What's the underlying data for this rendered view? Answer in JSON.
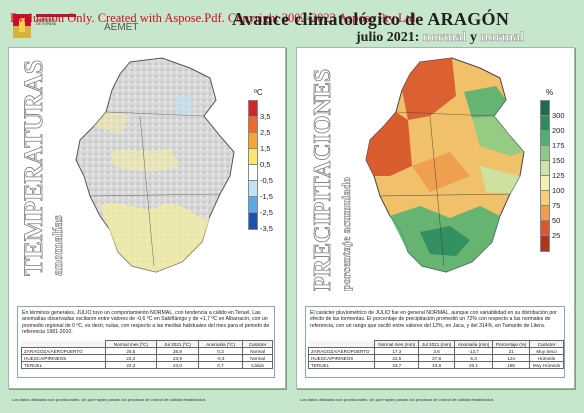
{
  "watermark": "Evaluation Only. Created with Aspose.Pdf. Copyright 2002-2023 Aspose Pty Ltd.",
  "header": {
    "title_line1": "Avance climatológico de ARAGÓN",
    "title_month": "julio 2021:",
    "title_normal1": "normal",
    "title_y": "y",
    "title_normal2": "normal",
    "aemet": "AEMET"
  },
  "left": {
    "vertical_title": "TEMPERATURAS",
    "vertical_subtitle": "anomalías",
    "unit": "ºC",
    "legend": {
      "values": [
        "3,5",
        "2,5",
        "1,5",
        "0,5",
        "-0,5",
        "-1,5",
        "-2,5",
        "-3,5"
      ],
      "colors": [
        "#d1262b",
        "#f06a2c",
        "#f7a534",
        "#fbe56a",
        "#ffffff",
        "#bde3f5",
        "#5aa9e6",
        "#1e4fb3"
      ]
    },
    "text": "En términos generales, JULIO tuvo un comportamiento NORMAL, con tendencia a cálido en Teruel. Las anomalías observadas oscilaron entre valores de -0,6 ºC en Sabiñánigo y de +1,7 ºC en Albarracín, con un promedio regional de 0 ºC, es decir, nulas, con respecto a las medias habituales del mes para el periodo de referencia 1981-2010.",
    "table": {
      "headers": [
        "",
        "Normal mes (ºC)",
        "Jul 2021 (ºC)",
        "Anomalía (ºC)",
        "Carácter"
      ],
      "rows": [
        [
          "ZARAGOZA/AEROPUERTO",
          "25,5",
          "25,8",
          "0,3",
          "Normal"
        ],
        [
          "HUESCA/PIRINEOS",
          "24,2",
          "23,9",
          "-0,3",
          "Normal"
        ],
        [
          "TERUEL",
          "22,3",
          "23,0",
          "0,7",
          "Cálido"
        ]
      ]
    },
    "footnote": "Los datos utilizados son provisionales, sin que hayan pasado los procesos de control de calidad establecidos"
  },
  "right": {
    "vertical_title": "PRECIPITACIONES",
    "vertical_subtitle": "porcentaje acumulado",
    "unit": "%",
    "legend": {
      "values": [
        "300",
        "200",
        "175",
        "150",
        "125",
        "100",
        "75",
        "50",
        "25"
      ],
      "colors": [
        "#1f6b4f",
        "#2e8d5f",
        "#4eb073",
        "#8ccc86",
        "#c9e5a7",
        "#f3efb0",
        "#f6cf78",
        "#ee9c4d",
        "#d8572d",
        "#b03420"
      ]
    },
    "text": "El carácter pluviométrico de JULIO fue en general NORMAL, aunque con variabilidad en su distribución por efecto de las tormentas. El porcentaje de precipitación promedió un 72% con respecto a las normales de referencia, con un rango que osciló entre valores del 12%, en Jaca, y del 314%, en Tamarite de Litera.",
    "table": {
      "headers": [
        "",
        "Normal mes (mm)",
        "Jul 2021 (mm)",
        "Anomalía (mm)",
        "Porcentaje (%)",
        "Carácter"
      ],
      "rows": [
        [
          "ZARAGOZA/AEROPUERTO",
          "17,3",
          "3,6",
          "-13,7",
          "21",
          "Muy Seco"
        ],
        [
          "HUESCA/PIRINEOS",
          "22,5",
          "27,8",
          "5,3",
          "124",
          "Húmedo"
        ],
        [
          "TERUEL",
          "23,7",
          "43,8",
          "20,1",
          "185",
          "Muy Húmedo"
        ]
      ]
    },
    "footnote": "Los datos utilizados son provisionales, sin que hayan pasado los procesos de control de calidad establecidos"
  }
}
